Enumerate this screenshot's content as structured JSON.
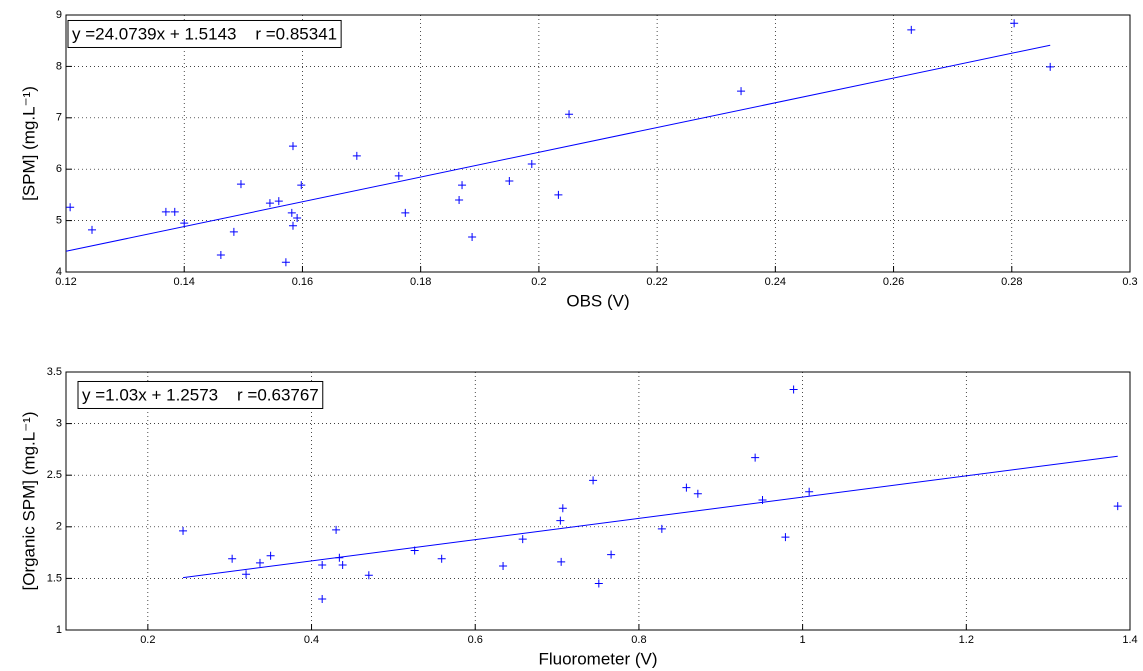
{
  "chart_data": [
    {
      "type": "scatter",
      "x_label": "OBS (V)",
      "y_label": "[SPM] (mg.L⁻¹)",
      "annotation": "y =24.0739x + 1.5143    r =0.85341",
      "color": "#0000ff",
      "grid": true,
      "xlim": [
        0.12,
        0.3
      ],
      "xticks": [
        0.12,
        0.14,
        0.16,
        0.18,
        0.2,
        0.22,
        0.24,
        0.26,
        0.28,
        0.3
      ],
      "ylim": [
        4,
        9
      ],
      "yticks": [
        4,
        5,
        6,
        7,
        8,
        9
      ],
      "x": [
        0.1207,
        0.1244,
        0.1369,
        0.1384,
        0.14,
        0.1462,
        0.1484,
        0.1496,
        0.1545,
        0.156,
        0.1572,
        0.1584,
        0.1582,
        0.1584,
        0.1591,
        0.1598,
        0.1692,
        0.1763,
        0.1774,
        0.1865,
        0.187,
        0.1887,
        0.195,
        0.1988,
        0.2033,
        0.2051,
        0.2342,
        0.263,
        0.2804,
        0.2865
      ],
      "values": [
        5.26,
        4.82,
        5.17,
        5.17,
        4.95,
        4.33,
        4.78,
        5.71,
        5.34,
        5.38,
        4.19,
        6.45,
        5.15,
        4.9,
        5.05,
        5.69,
        6.26,
        5.87,
        5.15,
        5.4,
        5.69,
        4.68,
        5.77,
        6.1,
        5.5,
        7.07,
        7.52,
        8.71,
        8.84,
        7.99
      ],
      "fit_line": {
        "x": [
          0.12,
          0.2865
        ],
        "values": [
          4.403,
          8.412
        ]
      }
    },
    {
      "type": "scatter",
      "x_label": "Fluorometer (V)",
      "y_label": "[Organic SPM] (mg.L⁻¹)",
      "annotation": "y =1.03x + 1.2573    r =0.63767",
      "color": "#0000ff",
      "grid": true,
      "xlim": [
        0.1,
        1.4
      ],
      "xticks": [
        0.2,
        0.4,
        0.6,
        0.8,
        1,
        1.2,
        1.4
      ],
      "ylim": [
        1,
        3.5
      ],
      "yticks": [
        1,
        1.5,
        2,
        2.5,
        3,
        3.5
      ],
      "x": [
        0.243,
        0.303,
        0.32,
        0.337,
        0.35,
        0.413,
        0.413,
        0.43,
        0.434,
        0.438,
        0.47,
        0.526,
        0.559,
        0.634,
        0.658,
        0.704,
        0.707,
        0.705,
        0.744,
        0.751,
        0.766,
        0.828,
        0.858,
        0.872,
        0.942,
        0.951,
        0.979,
        0.989,
        1.008,
        1.385
      ],
      "values": [
        1.96,
        1.69,
        1.54,
        1.65,
        1.72,
        1.3,
        1.63,
        1.97,
        1.7,
        1.63,
        1.53,
        1.77,
        1.69,
        1.62,
        1.88,
        2.06,
        2.18,
        1.66,
        2.45,
        1.45,
        1.73,
        1.98,
        2.38,
        2.32,
        2.67,
        2.26,
        1.9,
        3.33,
        2.34,
        2.2
      ],
      "fit_line": {
        "x": [
          0.243,
          1.385
        ],
        "values": [
          1.508,
          2.684
        ]
      }
    }
  ]
}
